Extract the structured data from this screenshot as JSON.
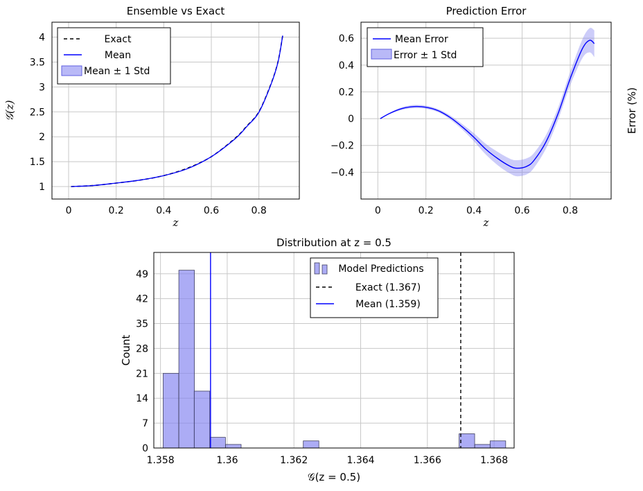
{
  "chart_data": [
    {
      "type": "line",
      "title": "Ensemble vs Exact",
      "xlabel": "z",
      "ylabel": "𝒢(z)",
      "xlim": [
        -0.07,
        0.97
      ],
      "ylim": [
        0.75,
        4.3
      ],
      "xticks": [
        "0",
        "0.2",
        "0.4",
        "0.6",
        "0.8"
      ],
      "yticks": [
        "1",
        "1.5",
        "2",
        "2.5",
        "3",
        "3.5",
        "4"
      ],
      "grid": true,
      "legend_position": "top-left",
      "legend": [
        "Exact",
        "Mean",
        "Mean ± 1 Std"
      ],
      "x": [
        0.01,
        0.1,
        0.2,
        0.3,
        0.4,
        0.5,
        0.6,
        0.7,
        0.75,
        0.8,
        0.85,
        0.88,
        0.9
      ],
      "series": [
        {
          "name": "Exact",
          "style": "dashed",
          "color": "#000000",
          "values": [
            1.0,
            1.02,
            1.07,
            1.13,
            1.22,
            1.37,
            1.6,
            1.97,
            2.22,
            2.5,
            3.05,
            3.5,
            4.03
          ]
        },
        {
          "name": "Mean",
          "style": "solid",
          "color": "#0000ff",
          "values": [
            1.0,
            1.02,
            1.07,
            1.13,
            1.22,
            1.36,
            1.6,
            1.96,
            2.21,
            2.49,
            3.04,
            3.49,
            4.03
          ]
        }
      ],
      "band": {
        "name": "Mean ± 1 Std",
        "color": "#8080f0",
        "halfwidth": [
          0.005,
          0.005,
          0.005,
          0.005,
          0.005,
          0.005,
          0.005,
          0.005,
          0.006,
          0.006,
          0.008,
          0.01,
          0.012
        ]
      }
    },
    {
      "type": "line",
      "title": "Prediction Error",
      "xlabel": "z",
      "ylabel": "Error (%)",
      "xlim": [
        -0.07,
        0.97
      ],
      "ylim": [
        -0.6,
        0.72
      ],
      "xticks": [
        "0",
        "0.2",
        "0.4",
        "0.6",
        "0.8"
      ],
      "yticks": [
        "−0.4",
        "−0.2",
        "0",
        "0.2",
        "0.4",
        "0.6"
      ],
      "grid": true,
      "legend_position": "top-left",
      "legend": [
        "Mean Error",
        "Error ± 1 Std"
      ],
      "x": [
        0.01,
        0.05,
        0.1,
        0.15,
        0.2,
        0.25,
        0.3,
        0.35,
        0.4,
        0.45,
        0.5,
        0.55,
        0.58,
        0.62,
        0.65,
        0.7,
        0.75,
        0.8,
        0.85,
        0.88,
        0.9
      ],
      "series": [
        {
          "name": "Mean Error",
          "color": "#0000ff",
          "values": [
            0.0,
            0.04,
            0.075,
            0.09,
            0.085,
            0.06,
            0.01,
            -0.06,
            -0.14,
            -0.23,
            -0.3,
            -0.355,
            -0.37,
            -0.355,
            -0.31,
            -0.17,
            0.04,
            0.3,
            0.52,
            0.585,
            0.56
          ]
        }
      ],
      "band": {
        "name": "Error ± 1 Std",
        "color": "#8080f0",
        "halfwidth": [
          0.002,
          0.005,
          0.01,
          0.012,
          0.012,
          0.012,
          0.015,
          0.02,
          0.03,
          0.04,
          0.05,
          0.055,
          0.06,
          0.06,
          0.055,
          0.05,
          0.045,
          0.05,
          0.07,
          0.09,
          0.1
        ]
      }
    },
    {
      "type": "bar",
      "title": "Distribution at z = 0.5",
      "xlabel": "𝒢(z = 0.5)",
      "ylabel": "Count",
      "xlim": [
        1.3578,
        1.3686
      ],
      "ylim": [
        0,
        55
      ],
      "xticks": [
        "1.358",
        "1.36",
        "1.362",
        "1.364",
        "1.366",
        "1.368"
      ],
      "yticks": [
        "0",
        "7",
        "14",
        "21",
        "28",
        "35",
        "42",
        "49"
      ],
      "grid": true,
      "legend_position": "top-right",
      "legend": [
        "Model Predictions",
        "Exact (1.367)",
        "Mean (1.359)"
      ],
      "bin_width": 0.000467,
      "bins": [
        1.35808,
        1.35855,
        1.35901,
        1.35948,
        1.35995,
        1.36041,
        1.36228,
        1.36695,
        1.36742,
        1.36788
      ],
      "counts": [
        21,
        50,
        16,
        3,
        1,
        0,
        2,
        4,
        1,
        2
      ],
      "exact_line": 1.367,
      "mean_line": 1.3595
    }
  ]
}
